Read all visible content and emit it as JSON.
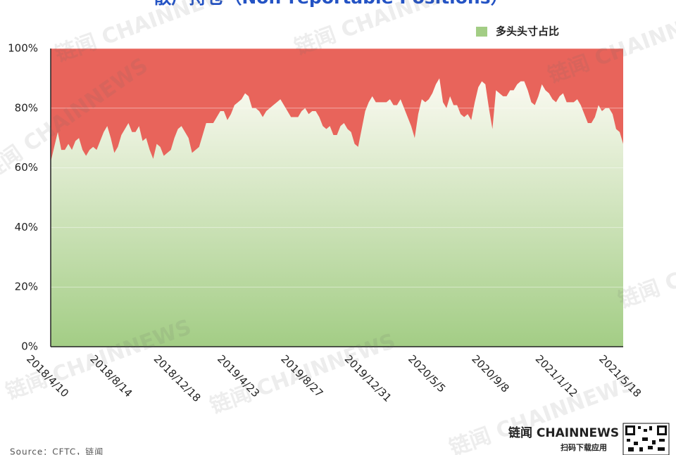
{
  "chart_data": {
    "type": "area",
    "title": "散户持仓（Non-reportable Positions）",
    "legend_position": "top-right",
    "watermark": "链闻 CHAINNEWS",
    "brand": "链闻 CHAINNEWS",
    "brand_caption": "扫码下载应用",
    "source": "Source：CFTC，链闻",
    "plot_background": "#e8645b",
    "grid": true,
    "ylim": [
      0,
      100
    ],
    "yticks": [
      {
        "value": 0,
        "label": "0%"
      },
      {
        "value": 20,
        "label": "20%"
      },
      {
        "value": 40,
        "label": "40%"
      },
      {
        "value": 60,
        "label": "60%"
      },
      {
        "value": 80,
        "label": "80%"
      },
      {
        "value": 100,
        "label": "100%"
      }
    ],
    "categories": [
      "2018/4/10",
      null,
      null,
      null,
      null,
      null,
      null,
      null,
      null,
      null,
      null,
      null,
      null,
      null,
      null,
      null,
      null,
      null,
      "2018/8/14",
      null,
      null,
      null,
      null,
      null,
      null,
      null,
      null,
      null,
      null,
      null,
      null,
      null,
      null,
      null,
      null,
      null,
      "2018/12/18",
      null,
      null,
      null,
      null,
      null,
      null,
      null,
      null,
      null,
      null,
      null,
      null,
      null,
      null,
      null,
      null,
      null,
      "2019/4/23",
      null,
      null,
      null,
      null,
      null,
      null,
      null,
      null,
      null,
      null,
      null,
      null,
      null,
      null,
      null,
      null,
      null,
      "2019/8/27",
      null,
      null,
      null,
      null,
      null,
      null,
      null,
      null,
      null,
      null,
      null,
      null,
      null,
      null,
      null,
      null,
      null,
      "2019/12/31",
      null,
      null,
      null,
      null,
      null,
      null,
      null,
      null,
      null,
      null,
      null,
      null,
      null,
      null,
      null,
      null,
      null,
      "2020/5/5",
      null,
      null,
      null,
      null,
      null,
      null,
      null,
      null,
      null,
      null,
      null,
      null,
      null,
      null,
      null,
      null,
      null,
      "2020/9/8",
      null,
      null,
      null,
      null,
      null,
      null,
      null,
      null,
      null,
      null,
      null,
      null,
      null,
      null,
      null,
      null,
      null,
      "2021/1/12",
      null,
      null,
      null,
      null,
      null,
      null,
      null,
      null,
      null,
      null,
      null,
      null,
      null,
      null,
      null,
      null,
      null,
      "2021/5/18"
    ],
    "series": [
      {
        "name": "多头头寸占比",
        "color": "#a3cd85",
        "gradient_top": "#fbfaf2",
        "values": [
          62,
          67,
          72,
          66,
          66,
          68,
          66,
          69,
          70,
          66,
          64,
          66,
          67,
          66,
          69,
          72,
          74,
          70,
          65,
          67,
          71,
          73,
          75,
          72,
          72,
          74,
          69,
          70,
          66,
          63,
          68,
          67,
          64,
          65,
          66,
          70,
          73,
          74,
          72,
          70,
          65,
          66,
          67,
          71,
          75,
          75,
          75,
          77,
          79,
          79,
          76,
          78,
          81,
          82,
          83,
          85,
          84,
          80,
          80,
          79,
          77,
          79,
          80,
          81,
          82,
          83,
          81,
          79,
          77,
          77,
          77,
          79,
          80,
          78,
          79,
          79,
          77,
          74,
          73,
          74,
          71,
          71,
          74,
          75,
          73,
          72,
          68,
          67,
          73,
          79,
          82,
          84,
          82,
          82,
          82,
          82,
          83,
          81,
          81,
          83,
          80,
          77,
          74,
          70,
          78,
          83,
          82,
          83,
          85,
          88,
          90,
          82,
          80,
          84,
          81,
          81,
          78,
          77,
          78,
          76,
          82,
          87,
          89,
          88,
          80,
          73,
          86,
          85,
          84,
          84,
          86,
          86,
          88,
          89,
          89,
          86,
          82,
          81,
          84,
          88,
          86,
          85,
          83,
          82,
          84,
          85,
          82,
          82,
          82,
          83,
          81,
          78,
          75,
          75,
          77,
          81,
          79,
          80,
          80,
          78,
          73,
          72,
          68
        ]
      }
    ]
  }
}
